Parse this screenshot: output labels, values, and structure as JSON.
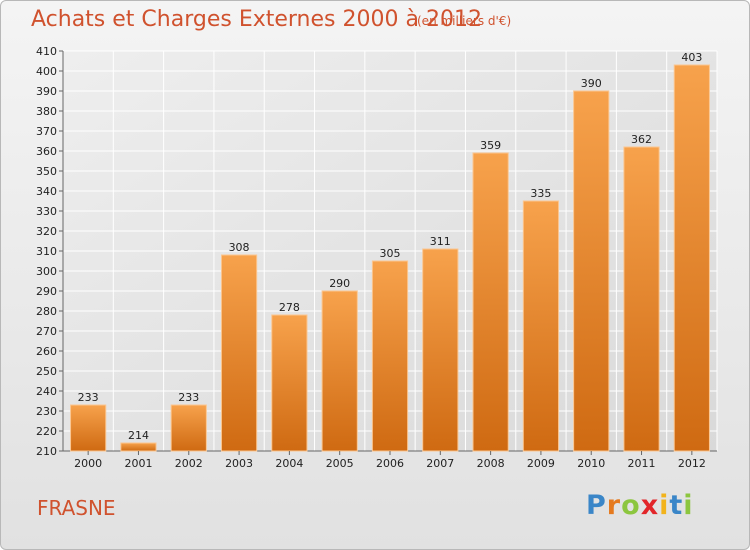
{
  "chart_data": {
    "type": "bar",
    "title": "Achats et Charges Externes 2000 à 2012",
    "subtitle": "(en milliers d'€)",
    "categories": [
      "2000",
      "2001",
      "2002",
      "2003",
      "2004",
      "2005",
      "2006",
      "2007",
      "2008",
      "2009",
      "2010",
      "2011",
      "2012"
    ],
    "values": [
      233,
      214,
      233,
      308,
      278,
      290,
      305,
      311,
      359,
      335,
      390,
      362,
      403
    ],
    "ylim": [
      210,
      410
    ],
    "yticks": [
      210,
      220,
      230,
      240,
      250,
      260,
      270,
      280,
      290,
      300,
      310,
      320,
      330,
      340,
      350,
      360,
      370,
      380,
      390,
      400,
      410
    ],
    "grid": true,
    "bar_color": "#e8892e"
  },
  "footer": {
    "city": "FRASNE",
    "logo": [
      "P",
      "r",
      "o",
      "x",
      "i",
      "t",
      "i"
    ]
  }
}
